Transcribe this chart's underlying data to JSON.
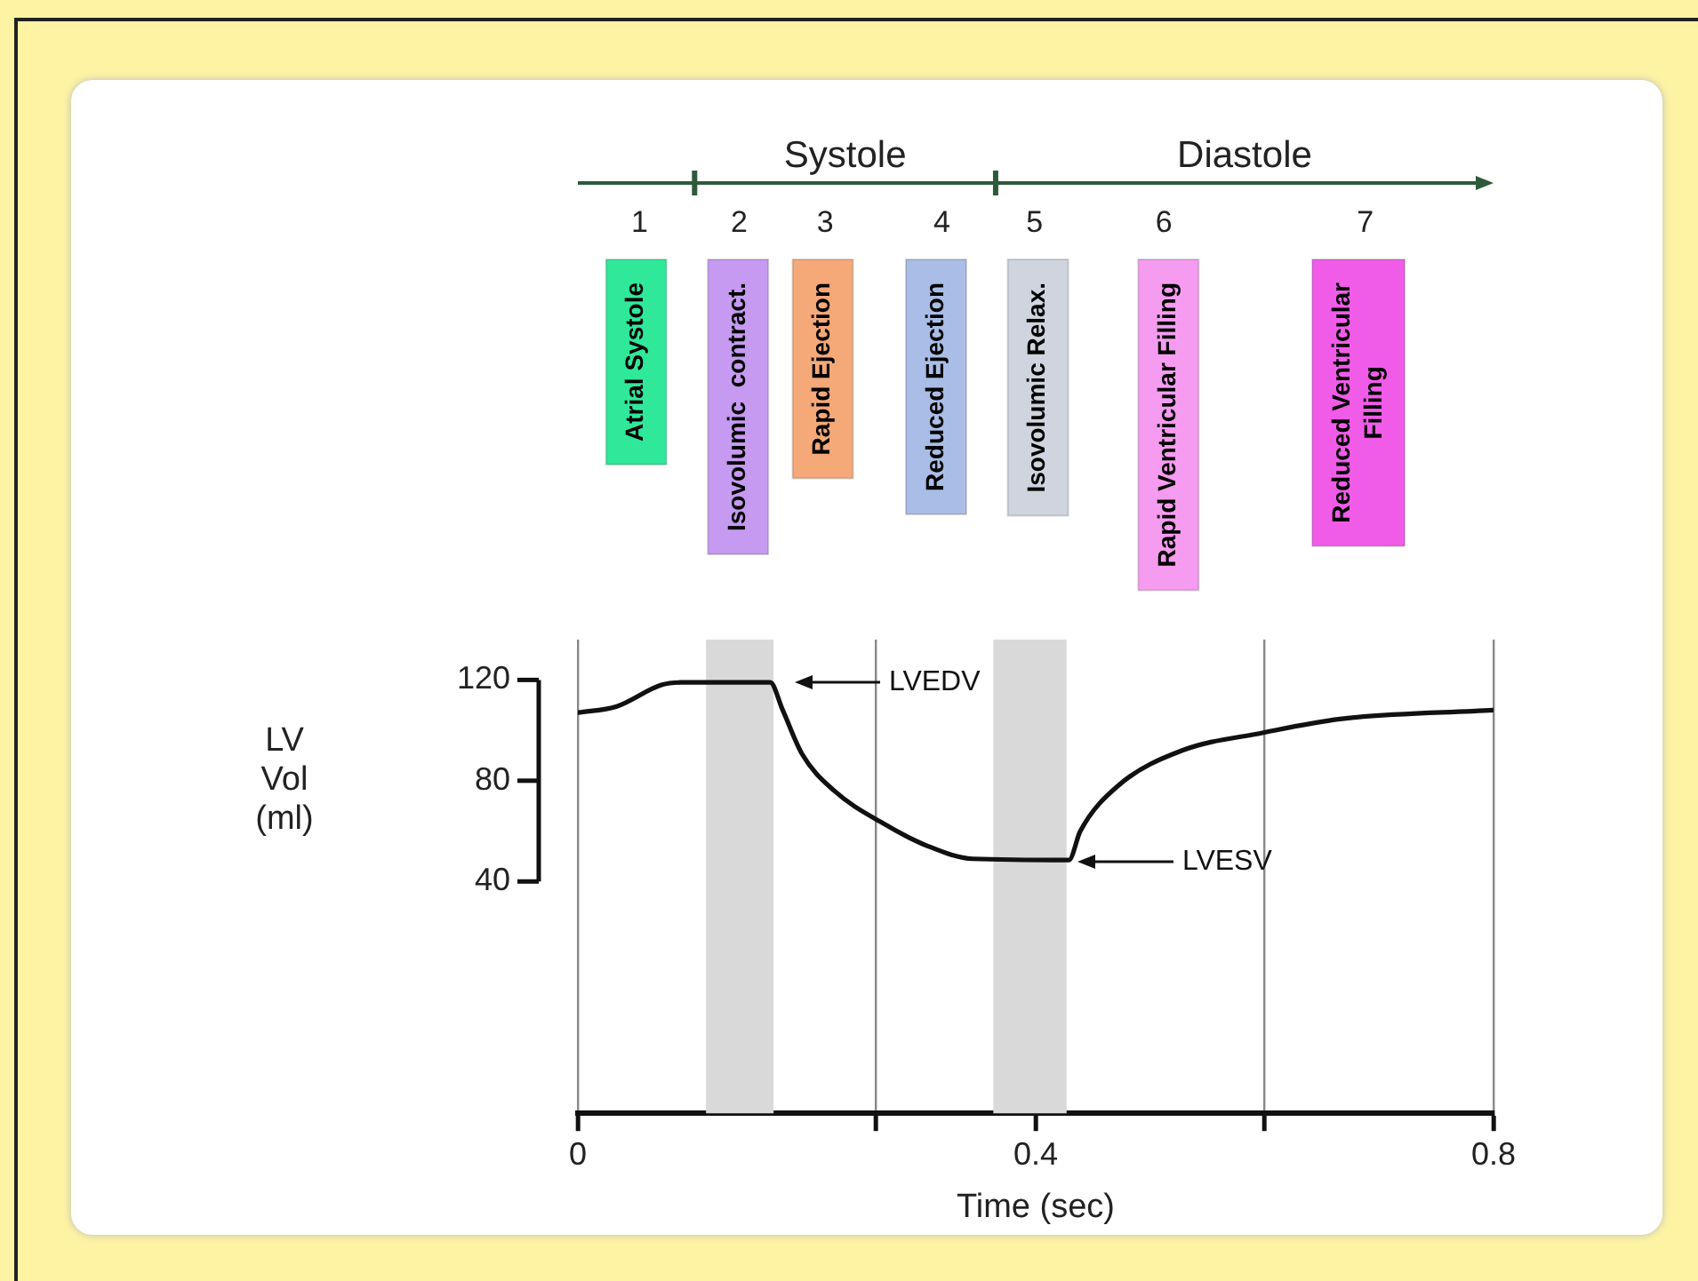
{
  "chart_data": {
    "type": "line",
    "xlabel": "Time (sec)",
    "ylabel": "LV Vol (ml)",
    "x": [
      0,
      0.034,
      0.073,
      0.09,
      0.168,
      0.179,
      0.196,
      0.224,
      0.267,
      0.306,
      0.345,
      0.429,
      0.439,
      0.472,
      0.528,
      0.598,
      0.666,
      0.8
    ],
    "series": [
      {
        "color": "#111111",
        "values": [
          107,
          109.5,
          118,
          119,
          119,
          108,
          90.5,
          76,
          63,
          54,
          49,
          48.5,
          60,
          78,
          92,
          99,
          104.5,
          108
        ]
      }
    ],
    "xlim": [
      0,
      0.8
    ],
    "xticks": [
      0,
      {
        "value": 0.26,
        "label": null
      },
      0.4,
      {
        "value": 0.6,
        "label": null
      },
      0.8
    ],
    "ylim": [
      -52,
      136
    ],
    "yticks": [
      40,
      80,
      120
    ],
    "bands": [
      {
        "axis": "x",
        "from": 0.112,
        "to": 0.171,
        "color": "#d9d9d9"
      },
      {
        "axis": "x",
        "from": 0.363,
        "to": 0.427,
        "color": "#d9d9d9"
      }
    ],
    "annotations": [
      "Systole",
      "Diastole",
      "1",
      "2",
      "3",
      "4",
      "5",
      "6",
      "7",
      "Atrial Systole",
      "Isovolumic  contract.",
      "Rapid Ejection",
      "Reduced Ejection",
      "Isovolumic Relax.",
      "Rapid Ventricular Filling",
      "Reduced Ventricular Filling",
      "LVEDV",
      "LVESV"
    ],
    "grid": "x",
    "legend": false,
    "marker": "none",
    "line_style": "solid"
  }
}
